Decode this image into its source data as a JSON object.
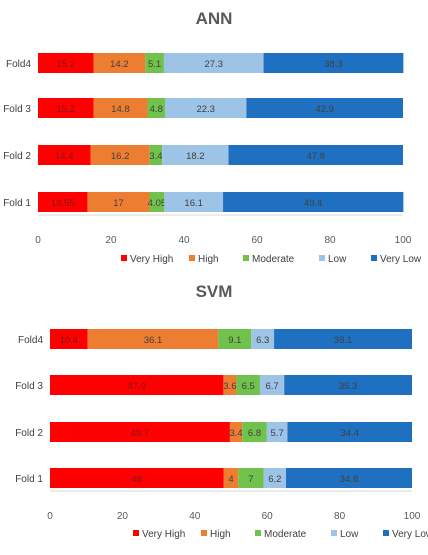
{
  "chart_data": [
    {
      "type": "bar",
      "orientation": "horizontal",
      "stacked": true,
      "title": "ANN",
      "categories": [
        "Fold4",
        "Fold 3",
        "Fold 2",
        "Fold 1"
      ],
      "series": [
        {
          "name": "Very High",
          "color": "#FF0000",
          "values": [
            15.2,
            15.2,
            14.4,
            13.55
          ]
        },
        {
          "name": "High",
          "color": "#ED7D31",
          "values": [
            14.2,
            14.8,
            16.2,
            17
          ]
        },
        {
          "name": "Moderate",
          "color": "#70C24C",
          "values": [
            5.1,
            4.8,
            3.4,
            4.05
          ]
        },
        {
          "name": "Low",
          "color": "#9DC3E6",
          "values": [
            27.3,
            22.3,
            18.2,
            16.1
          ]
        },
        {
          "name": "Very Low",
          "color": "#1F70C1",
          "values": [
            38.3,
            42.9,
            47.8,
            49.4
          ]
        }
      ],
      "xlim": [
        0,
        100
      ],
      "xticks": [
        "0",
        "20",
        "40",
        "60",
        "80",
        "100"
      ],
      "legend_position": "bottom",
      "grid": false
    },
    {
      "type": "bar",
      "orientation": "horizontal",
      "stacked": true,
      "title": "SVM",
      "categories": [
        "Fold4",
        "Fold 3",
        "Fold 2",
        "Fold 1"
      ],
      "series": [
        {
          "name": "Very High",
          "color": "#FF0000",
          "values": [
            10.4,
            47.9,
            49.7,
            48
          ]
        },
        {
          "name": "High",
          "color": "#ED7D31",
          "values": [
            36.1,
            3.6,
            3.4,
            4
          ]
        },
        {
          "name": "Moderate",
          "color": "#70C24C",
          "values": [
            9.1,
            6.5,
            6.8,
            7
          ]
        },
        {
          "name": "Low",
          "color": "#9DC3E6",
          "values": [
            6.3,
            6.7,
            5.7,
            6.2
          ]
        },
        {
          "name": "Very Low",
          "color": "#1F70C1",
          "values": [
            38.1,
            35.3,
            34.4,
            34.8
          ]
        }
      ],
      "xlim": [
        0,
        100
      ],
      "xticks": [
        "0",
        "20",
        "40",
        "60",
        "80",
        "100"
      ],
      "legend_position": "bottom",
      "grid": false
    }
  ]
}
